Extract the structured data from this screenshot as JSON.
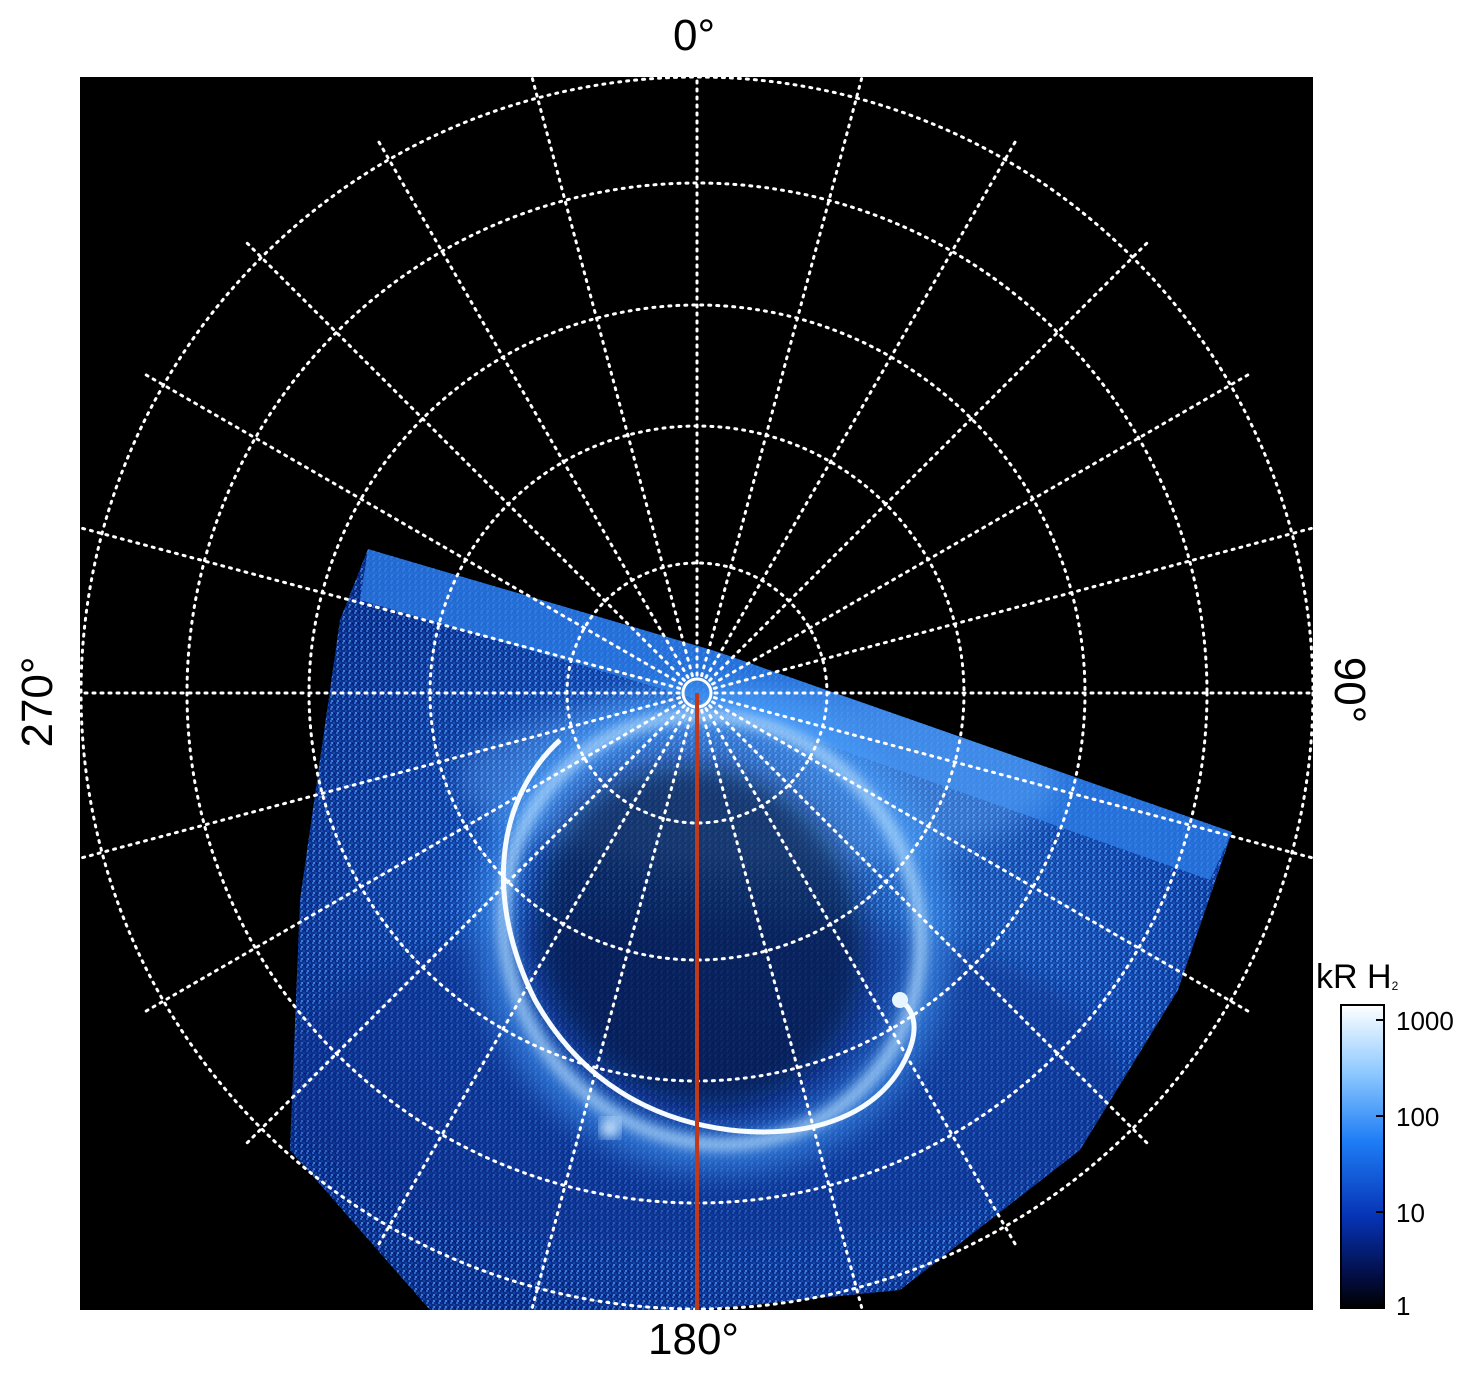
{
  "figure": {
    "axis_labels": {
      "top": "0°",
      "right": "90°",
      "bottom": "180°",
      "left": "270°"
    },
    "colorbar": {
      "title": "kR H",
      "title_subscript": "2",
      "tick_labels": [
        "1000",
        "100",
        "10",
        "1"
      ],
      "colors": [
        "#ffffff",
        "#9fd4ff",
        "#1e88ff",
        "#0033bb",
        "#000522"
      ]
    },
    "colors": {
      "background": "#000000",
      "grid": "#ffffff",
      "aurora_core": "#f2fbff",
      "aurora_glow": "#3a9cff",
      "meridian_line": "#c0391b"
    }
  }
}
